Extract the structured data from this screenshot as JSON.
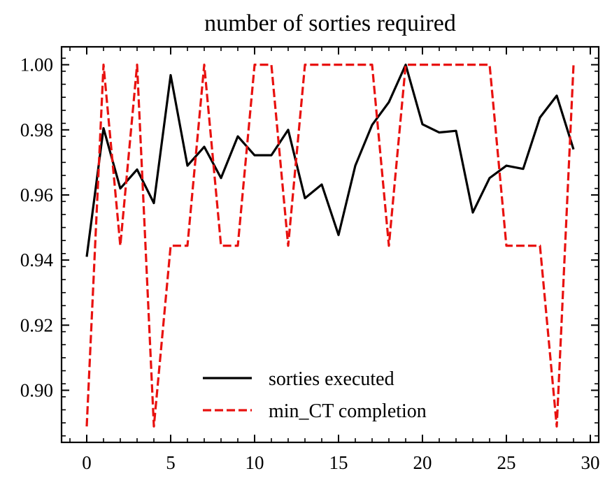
{
  "chart_data": {
    "type": "line",
    "title": "number of sorties required",
    "xlabel": "",
    "ylabel": "",
    "xlim": [
      -1.5,
      30.5
    ],
    "ylim": [
      0.884,
      1.0055
    ],
    "xticks": [
      0,
      5,
      10,
      15,
      20,
      25,
      30
    ],
    "xtick_labels": [
      "0",
      "5",
      "10",
      "15",
      "20",
      "25",
      "30"
    ],
    "yticks": [
      0.9,
      0.92,
      0.94,
      0.96,
      0.98,
      1.0
    ],
    "ytick_labels": [
      "0.90",
      "0.92",
      "0.94",
      "0.96",
      "0.98",
      "1.00"
    ],
    "legend_position": "lower-center",
    "x": [
      0,
      1,
      2,
      3,
      4,
      5,
      6,
      7,
      8,
      9,
      10,
      11,
      12,
      13,
      14,
      15,
      16,
      17,
      18,
      19,
      20,
      21,
      22,
      23,
      24,
      25,
      26,
      27,
      28,
      29
    ],
    "series": [
      {
        "name": "sorties executed",
        "color": "#000000",
        "style": "solid",
        "values": [
          0.941,
          0.9805,
          0.962,
          0.9678,
          0.9575,
          0.9968,
          0.969,
          0.9748,
          0.9652,
          0.978,
          0.9722,
          0.9722,
          0.98,
          0.959,
          0.9632,
          0.9477,
          0.969,
          0.9815,
          0.9885,
          1.0,
          0.9817,
          0.9792,
          0.9797,
          0.9546,
          0.9652,
          0.969,
          0.968,
          0.9838,
          0.9905,
          0.974
        ]
      },
      {
        "name": "min_CT completion",
        "color": "#e8110f",
        "style": "dashed",
        "values": [
          0.8889,
          1.0,
          0.9444,
          1.0,
          0.8889,
          0.9444,
          0.9444,
          1.0,
          0.9444,
          0.9444,
          1.0,
          1.0,
          0.9444,
          1.0,
          1.0,
          1.0,
          1.0,
          1.0,
          0.9444,
          1.0,
          1.0,
          1.0,
          1.0,
          1.0,
          1.0,
          0.9444,
          0.9444,
          0.9444,
          0.8889,
          1.0
        ]
      }
    ]
  }
}
